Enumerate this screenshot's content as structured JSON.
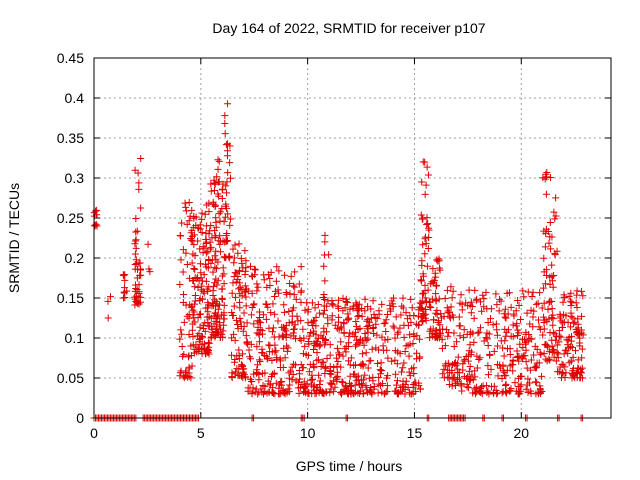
{
  "chart_data": {
    "type": "scatter",
    "title": "Day 164 of 2022, SRMTID for receiver p107",
    "xlabel": "GPS time / hours",
    "ylabel": "SRMTID / TECUs",
    "xlim": [
      0,
      24.2
    ],
    "ylim": [
      0,
      0.45
    ],
    "x_ticks": [
      0,
      5,
      10,
      15,
      20
    ],
    "x_tick_labels": [
      "0",
      "5",
      "10",
      "15",
      "20"
    ],
    "y_ticks": [
      0,
      0.05,
      0.1,
      0.15,
      0.2,
      0.25,
      0.3,
      0.35,
      0.4,
      0.45
    ],
    "y_tick_labels": [
      "0",
      "0.05",
      "0.1",
      "0.15",
      "0.2",
      "0.25",
      "0.3",
      "0.35",
      "0.4",
      "0.45"
    ],
    "grid": true,
    "marker": "plus",
    "series_color": "#e00000",
    "series": [
      {
        "name": "SRMTID",
        "clusters": [
          {
            "x": [
              0.0,
              0.15
            ],
            "y": [
              0.24,
              0.26
            ],
            "n": 10
          },
          {
            "x": [
              0.6,
              0.8
            ],
            "y": [
              0.125,
              0.16
            ],
            "n": 3
          },
          {
            "x": [
              1.35,
              1.6
            ],
            "y": [
              0.15,
              0.18
            ],
            "n": 10
          },
          {
            "x": [
              1.9,
              2.2
            ],
            "y": [
              0.14,
              0.33
            ],
            "n": 45
          },
          {
            "x": [
              2.5,
              2.7
            ],
            "y": [
              0.18,
              0.235
            ],
            "n": 3
          },
          {
            "x": [
              4.0,
              4.6
            ],
            "y": [
              0.05,
              0.27
            ],
            "n": 60
          },
          {
            "x": [
              4.6,
              5.4
            ],
            "y": [
              0.08,
              0.27
            ],
            "n": 130
          },
          {
            "x": [
              5.4,
              6.1
            ],
            "y": [
              0.1,
              0.33
            ],
            "n": 120
          },
          {
            "x": [
              6.1,
              6.4
            ],
            "y": [
              0.2,
              0.415
            ],
            "n": 35
          },
          {
            "x": [
              6.4,
              7.2
            ],
            "y": [
              0.05,
              0.22
            ],
            "n": 90
          },
          {
            "x": [
              7.2,
              9.8
            ],
            "y": [
              0.03,
              0.19
            ],
            "n": 220
          },
          {
            "x": [
              9.8,
              11.0
            ],
            "y": [
              0.03,
              0.15
            ],
            "n": 110
          },
          {
            "x": [
              10.7,
              11.0
            ],
            "y": [
              0.15,
              0.23
            ],
            "n": 8
          },
          {
            "x": [
              11.0,
              15.3
            ],
            "y": [
              0.03,
              0.15
            ],
            "n": 340
          },
          {
            "x": [
              15.3,
              15.7
            ],
            "y": [
              0.12,
              0.325
            ],
            "n": 55
          },
          {
            "x": [
              15.7,
              16.2
            ],
            "y": [
              0.1,
              0.2
            ],
            "n": 50
          },
          {
            "x": [
              16.2,
              17.2
            ],
            "y": [
              0.04,
              0.17
            ],
            "n": 70
          },
          {
            "x": [
              17.2,
              21.0
            ],
            "y": [
              0.03,
              0.16
            ],
            "n": 260
          },
          {
            "x": [
              21.0,
              21.7
            ],
            "y": [
              0.07,
              0.31
            ],
            "n": 80
          },
          {
            "x": [
              21.7,
              22.9
            ],
            "y": [
              0.05,
              0.16
            ],
            "n": 110
          }
        ],
        "zero_runs": [
          [
            0.0,
            2.0
          ],
          [
            2.3,
            4.9
          ],
          [
            7.4,
            7.5
          ],
          [
            9.7,
            9.9
          ],
          [
            11.8,
            11.9
          ],
          [
            15.6,
            15.7
          ],
          [
            16.6,
            17.4
          ],
          [
            18.2,
            18.3
          ],
          [
            19.1,
            19.2
          ],
          [
            20.2,
            20.3
          ],
          [
            21.7,
            21.8
          ],
          [
            22.8,
            22.9
          ]
        ]
      }
    ]
  }
}
